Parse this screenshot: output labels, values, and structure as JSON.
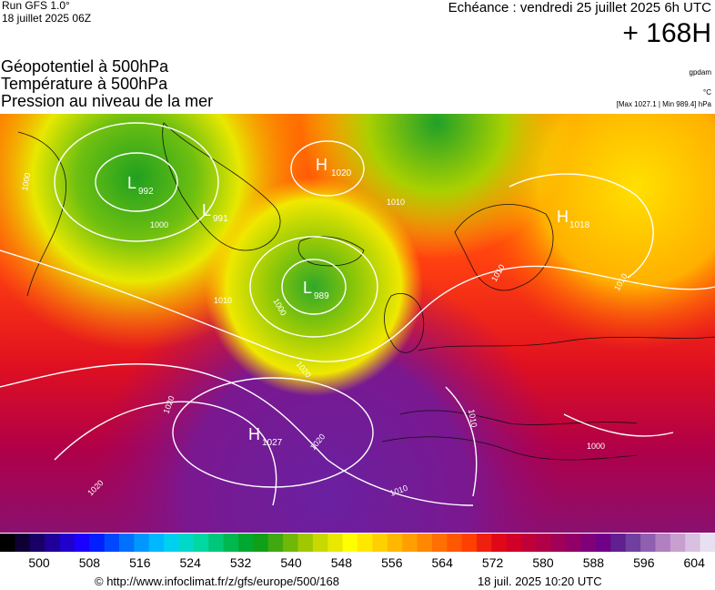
{
  "header": {
    "run_title": "Run GFS 1.0°",
    "run_date": "18 juillet 2025 06Z",
    "valid_time": "Echéance : vendredi 25 juillet 2025 6h UTC",
    "lead_time": "+ 168H"
  },
  "fields": {
    "line1": "Géopotentiel à 500hPa",
    "line2": "Température à 500hPa",
    "line3": "Pression au niveau de la mer"
  },
  "units": {
    "geopotential": "gpdam",
    "temperature": "°C",
    "pressure_range": "[Max 1027.1 | Min 989.4] hPa"
  },
  "map": {
    "pressure_centers": [
      {
        "type": "L",
        "value": "992"
      },
      {
        "type": "L",
        "value": "991"
      },
      {
        "type": "H",
        "value": "1020"
      },
      {
        "type": "L",
        "value": "989"
      },
      {
        "type": "H",
        "value": "1018"
      },
      {
        "type": "H",
        "value": "1027"
      }
    ],
    "isobar_labels": [
      "1000",
      "1010",
      "1010",
      "1000",
      "1000",
      "1010",
      "1020",
      "1020",
      "1020",
      "1010",
      "1010",
      "1000",
      "1020",
      "1010"
    ]
  },
  "colorbar": {
    "colors": [
      "#000000",
      "#0f0033",
      "#1a0066",
      "#1f0099",
      "#1f00cc",
      "#1c00ff",
      "#0020ff",
      "#0048ff",
      "#0070ff",
      "#0098ff",
      "#00b8ff",
      "#00d0f0",
      "#00d8c8",
      "#00d8a0",
      "#00c878",
      "#00b850",
      "#00a830",
      "#10a018",
      "#40a810",
      "#70b808",
      "#a0c800",
      "#c8d800",
      "#e8e800",
      "#ffff00",
      "#ffe800",
      "#ffd000",
      "#ffb800",
      "#ffa000",
      "#ff8800",
      "#ff7000",
      "#ff5800",
      "#ff4000",
      "#f02010",
      "#e00818",
      "#d00028",
      "#c00038",
      "#b00048",
      "#a00058",
      "#900068",
      "#800078",
      "#700088",
      "#602090",
      "#7040a0",
      "#9060b0",
      "#b080c0",
      "#c8a0d0",
      "#d8c0e0",
      "#e8e0f0"
    ],
    "tick_labels": [
      "500",
      "508",
      "516",
      "524",
      "532",
      "540",
      "548",
      "556",
      "564",
      "572",
      "580",
      "588",
      "596",
      "604"
    ]
  },
  "footer": {
    "copyright": "© http://www.infoclimat.fr/z/gfs/europe/500/168",
    "generated": "18 juil. 2025 10:20 UTC"
  }
}
